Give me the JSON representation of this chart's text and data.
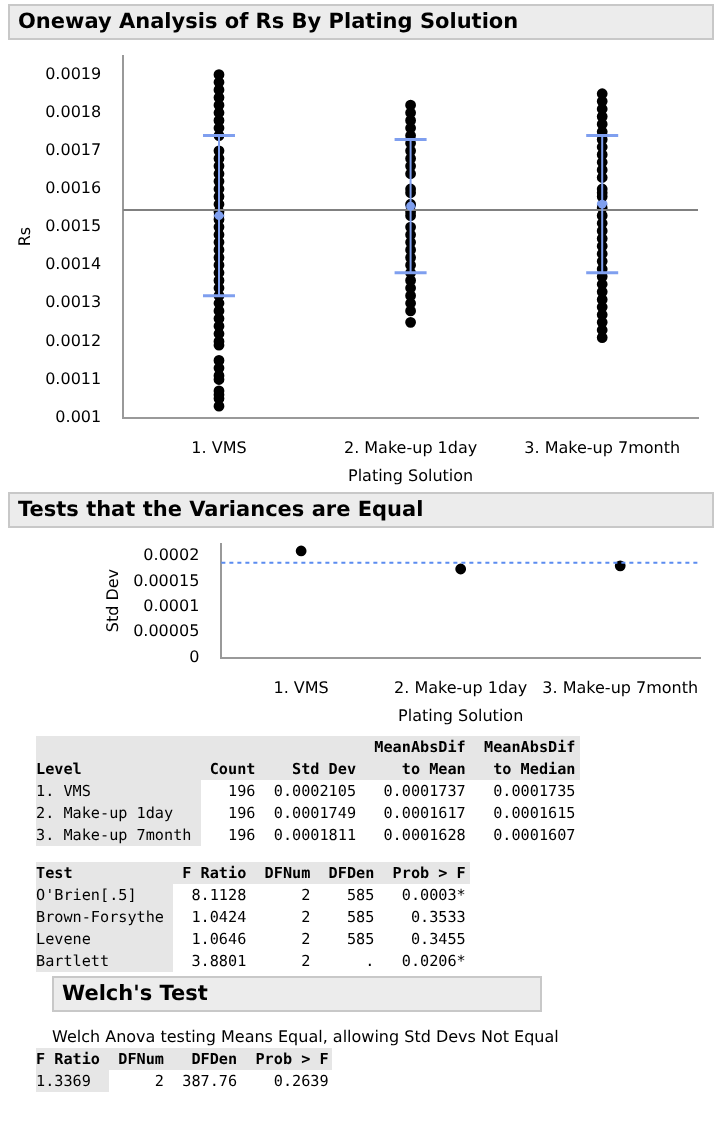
{
  "chart_data": [
    {
      "type": "scatter",
      "title": "Oneway Analysis of Rs By Plating Solution",
      "xlabel": "Plating Solution",
      "ylabel": "Rs",
      "categories": [
        "1. VMS",
        "2. Make-up 1day",
        "3. Make-up 7month"
      ],
      "ylim": [
        0.001,
        0.00195
      ],
      "yticks": [
        0.001,
        0.0011,
        0.0012,
        0.0013,
        0.0014,
        0.0015,
        0.0016,
        0.0017,
        0.0018,
        0.0019
      ],
      "grid": false,
      "legend": false,
      "marker": "circle",
      "series": [
        {
          "color": "#000000",
          "x": [
            "1. VMS",
            "1. VMS",
            "1. VMS",
            "1. VMS",
            "1. VMS",
            "1. VMS",
            "1. VMS",
            "1. VMS",
            "1. VMS",
            "1. VMS",
            "1. VMS",
            "1. VMS",
            "1. VMS",
            "1. VMS",
            "1. VMS",
            "1. VMS",
            "1. VMS",
            "1. VMS",
            "1. VMS",
            "1. VMS",
            "1. VMS",
            "1. VMS",
            "1. VMS",
            "1. VMS",
            "1. VMS",
            "1. VMS",
            "1. VMS",
            "1. VMS",
            "1. VMS",
            "1. VMS",
            "1. VMS",
            "1. VMS",
            "1. VMS",
            "1. VMS",
            "1. VMS",
            "1. VMS",
            "1. VMS",
            "1. VMS",
            "1. VMS",
            "1. VMS",
            "1. VMS",
            "1. VMS",
            "1. VMS",
            "1. VMS",
            "2. Make-up 1day",
            "2. Make-up 1day",
            "2. Make-up 1day",
            "2. Make-up 1day",
            "2. Make-up 1day",
            "2. Make-up 1day",
            "2. Make-up 1day",
            "2. Make-up 1day",
            "2. Make-up 1day",
            "2. Make-up 1day",
            "2. Make-up 1day",
            "2. Make-up 1day",
            "2. Make-up 1day",
            "2. Make-up 1day",
            "2. Make-up 1day",
            "2. Make-up 1day",
            "2. Make-up 1day",
            "2. Make-up 1day",
            "2. Make-up 1day",
            "2. Make-up 1day",
            "2. Make-up 1day",
            "2. Make-up 1day",
            "2. Make-up 1day",
            "2. Make-up 1day",
            "2. Make-up 1day",
            "2. Make-up 1day",
            "2. Make-up 1day",
            "2. Make-up 1day",
            "3. Make-up 7month",
            "3. Make-up 7month",
            "3. Make-up 7month",
            "3. Make-up 7month",
            "3. Make-up 7month",
            "3. Make-up 7month",
            "3. Make-up 7month",
            "3. Make-up 7month",
            "3. Make-up 7month",
            "3. Make-up 7month",
            "3. Make-up 7month",
            "3. Make-up 7month",
            "3. Make-up 7month",
            "3. Make-up 7month",
            "3. Make-up 7month",
            "3. Make-up 7month",
            "3. Make-up 7month",
            "3. Make-up 7month",
            "3. Make-up 7month",
            "3. Make-up 7month",
            "3. Make-up 7month",
            "3. Make-up 7month",
            "3. Make-up 7month",
            "3. Make-up 7month",
            "3. Make-up 7month",
            "3. Make-up 7month",
            "3. Make-up 7month",
            "3. Make-up 7month",
            "3. Make-up 7month",
            "3. Make-up 7month",
            "3. Make-up 7month",
            "3. Make-up 7month",
            "3. Make-up 7month"
          ],
          "values": [
            0.0019,
            0.00188,
            0.00186,
            0.00184,
            0.00182,
            0.0018,
            0.00178,
            0.00176,
            0.00174,
            0.0017,
            0.00168,
            0.00166,
            0.00164,
            0.00162,
            0.0016,
            0.00158,
            0.00156,
            0.00154,
            0.00152,
            0.0015,
            0.00148,
            0.00146,
            0.00144,
            0.00142,
            0.0014,
            0.00138,
            0.00136,
            0.00134,
            0.00132,
            0.0013,
            0.00128,
            0.00126,
            0.00124,
            0.00122,
            0.0012,
            0.00119,
            0.00115,
            0.00113,
            0.00111,
            0.0011,
            0.00107,
            0.00106,
            0.00105,
            0.00103,
            0.00182,
            0.0018,
            0.00178,
            0.00176,
            0.00174,
            0.00172,
            0.0017,
            0.00168,
            0.00166,
            0.00164,
            0.0016,
            0.00159,
            0.00156,
            0.00154,
            0.00153,
            0.0015,
            0.00148,
            0.00146,
            0.00144,
            0.00142,
            0.0014,
            0.00138,
            0.00136,
            0.00134,
            0.00132,
            0.0013,
            0.00128,
            0.00125,
            0.00185,
            0.00183,
            0.00181,
            0.00179,
            0.00177,
            0.00175,
            0.00173,
            0.00171,
            0.00169,
            0.00167,
            0.00165,
            0.00163,
            0.0016,
            0.00159,
            0.00158,
            0.00155,
            0.00153,
            0.00151,
            0.00149,
            0.00147,
            0.00145,
            0.00143,
            0.00141,
            0.00139,
            0.00137,
            0.00135,
            0.00133,
            0.00131,
            0.00129,
            0.00127,
            0.00125,
            0.00123,
            0.00121
          ]
        },
        {
          "color": "#7f9fef",
          "marker": "circle",
          "values": [
            0.00153,
            0.001555,
            0.00156
          ],
          "errors": [
            0.00021,
            0.000175,
            0.00018
          ]
        }
      ],
      "ref_lines": [
        {
          "axis": "y",
          "value": 0.001545,
          "color": "#808080",
          "line_style": "solid"
        }
      ]
    },
    {
      "type": "scatter",
      "title": "Tests that the Variances are Equal",
      "xlabel": "Plating Solution",
      "ylabel": "Std Dev",
      "categories": [
        "1. VMS",
        "2. Make-up 1day",
        "3. Make-up 7month"
      ],
      "ylim": [
        0,
        0.000225
      ],
      "yticks": [
        0,
        {
          "value": 5e-05,
          "label": "0.00005"
        },
        0.0001,
        0.00015,
        0.0002
      ],
      "grid": false,
      "legend": false,
      "marker": "circle",
      "series": [
        {
          "color": "#000000",
          "values": [
            0.0002105,
            0.0001749,
            0.0001811
          ]
        }
      ],
      "ref_lines": [
        {
          "axis": "y",
          "value": 0.000187,
          "color": "#5b8cf0",
          "line_style": "dotted"
        }
      ],
      "annotations": [
        "\t\t\tMeanAbsDif\tMeanAbsDif",
        "Level\tCount\tStd Dev\tto Mean\tto Median",
        "1. VMS\t196\t0.0002105\t0.0001737\t0.0001735",
        "2. Make-up 1day\t196\t0.0001749\t0.0001617\t0.0001615",
        "3. Make-up 7month\t196\t0.0001811\t0.0001628\t0.0001607"
      ]
    },
    {
      "type": "other",
      "annotations": [
        "Test\tF Ratio\tDFNum\tDFDen\tProb > F",
        "O'Brien[.5]\t8.1128\t2\t585\t0.0003*",
        "Brown-Forsythe\t1.0424\t2\t585\t0.3533",
        "Levene\t1.0646\t2\t585\t0.3455",
        "Bartlett\t3.8801\t2\t.\t0.0206*"
      ]
    },
    {
      "type": "other",
      "title": "Welch's Test",
      "annotations": [
        "Welch Anova testing Means Equal, allowing Std Devs Not Equal",
        "F Ratio\tDFNum\tDFDen\tProb > F",
        "1.3369\t2\t387.76\t0.2639"
      ]
    }
  ]
}
